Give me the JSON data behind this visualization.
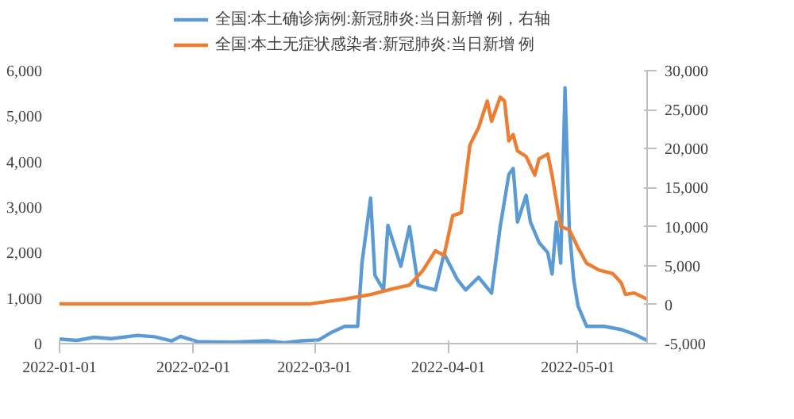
{
  "chart_data": {
    "type": "line",
    "x": [
      "2022-01-01",
      "2022-01-05",
      "2022-01-09",
      "2022-01-13",
      "2022-01-19",
      "2022-01-23",
      "2022-01-27",
      "2022-01-29",
      "2022-02-02",
      "2022-02-10",
      "2022-02-18",
      "2022-02-22",
      "2022-02-26",
      "2022-03-02",
      "2022-03-05",
      "2022-03-08",
      "2022-03-11",
      "2022-03-12",
      "2022-03-14",
      "2022-03-15",
      "2022-03-17",
      "2022-03-18",
      "2022-03-20",
      "2022-03-21",
      "2022-03-23",
      "2022-03-25",
      "2022-03-29",
      "2022-03-31",
      "2022-04-03",
      "2022-04-05",
      "2022-04-08",
      "2022-04-11",
      "2022-04-13",
      "2022-04-15",
      "2022-04-16",
      "2022-04-17",
      "2022-04-19",
      "2022-04-20",
      "2022-04-22",
      "2022-04-24",
      "2022-04-25",
      "2022-04-26",
      "2022-04-27",
      "2022-04-28",
      "2022-04-29",
      "2022-04-30",
      "2022-05-01",
      "2022-05-03",
      "2022-05-07",
      "2022-05-11",
      "2022-05-14",
      "2022-05-17"
    ],
    "series": [
      {
        "name": "全国:本土确诊病例:新冠肺炎:当日新增 例，右轴",
        "color": "#5b9bd5",
        "values": [
          100,
          70,
          140,
          110,
          180,
          150,
          60,
          160,
          40,
          30,
          60,
          20,
          60,
          80,
          250,
          380,
          380,
          1770,
          3200,
          1500,
          1180,
          2600,
          2000,
          1700,
          2570,
          1280,
          1180,
          1980,
          1420,
          1180,
          1460,
          1110,
          2570,
          3720,
          3850,
          2670,
          3260,
          2670,
          2220,
          2000,
          1530,
          2670,
          1770,
          5620,
          2500,
          1420,
          830,
          380,
          380,
          310,
          210,
          70
        ]
      },
      {
        "name": "全国:本土无症状感染者:新冠肺炎:当日新增 例",
        "color": "#ed7d31",
        "axis": "y2",
        "x": [
          "2022-01-01",
          "2022-01-31",
          "2022-02-28",
          "2022-03-04",
          "2022-03-08",
          "2022-03-11",
          "2022-03-14",
          "2022-03-19",
          "2022-03-23",
          "2022-03-26",
          "2022-03-29",
          "2022-03-31",
          "2022-04-02",
          "2022-04-04",
          "2022-04-06",
          "2022-04-08",
          "2022-04-10",
          "2022-04-11",
          "2022-04-13",
          "2022-04-14",
          "2022-04-15",
          "2022-04-16",
          "2022-04-17",
          "2022-04-19",
          "2022-04-21",
          "2022-04-22",
          "2022-04-24",
          "2022-04-25",
          "2022-04-27",
          "2022-04-29",
          "2022-05-01",
          "2022-05-03",
          "2022-05-06",
          "2022-05-09",
          "2022-05-11",
          "2022-05-12",
          "2022-05-14",
          "2022-05-17"
        ],
        "values": [
          100,
          100,
          100,
          400,
          700,
          1000,
          1300,
          2000,
          2500,
          4300,
          6900,
          6300,
          11400,
          11800,
          20500,
          22700,
          26100,
          23500,
          26600,
          26100,
          21000,
          21800,
          19700,
          19000,
          16600,
          18700,
          19300,
          16600,
          10000,
          9600,
          7300,
          5300,
          4400,
          4000,
          2800,
          1300,
          1500,
          700
        ]
      }
    ],
    "xlim": [
      "2022-01-01",
      "2022-05-17"
    ],
    "xticks": [
      "2022-01-01",
      "2022-02-01",
      "2022-03-01",
      "2022-04-01",
      "2022-05-01"
    ],
    "ylim": [
      0,
      6000
    ],
    "yticks": [
      0,
      {
        "value": 1000,
        "label": "1,000"
      },
      {
        "value": 2000,
        "label": "2,000"
      },
      {
        "value": 3000,
        "label": "3,000"
      },
      {
        "value": 4000,
        "label": "4,000"
      },
      {
        "value": 5000,
        "label": "5,000"
      },
      {
        "value": 6000,
        "label": "6,000"
      }
    ],
    "y2lim": [
      -5000,
      30000
    ],
    "y2ticks": [
      {
        "value": -5000,
        "label": "-5,000"
      },
      0,
      {
        "value": 5000,
        "label": "5,000"
      },
      {
        "value": 10000,
        "label": "10,000"
      },
      {
        "value": 15000,
        "label": "15,000"
      },
      {
        "value": 20000,
        "label": "20,000"
      },
      {
        "value": 25000,
        "label": "25,000"
      },
      {
        "value": 30000,
        "label": "30,000"
      }
    ],
    "legend": "top",
    "grid": false
  }
}
